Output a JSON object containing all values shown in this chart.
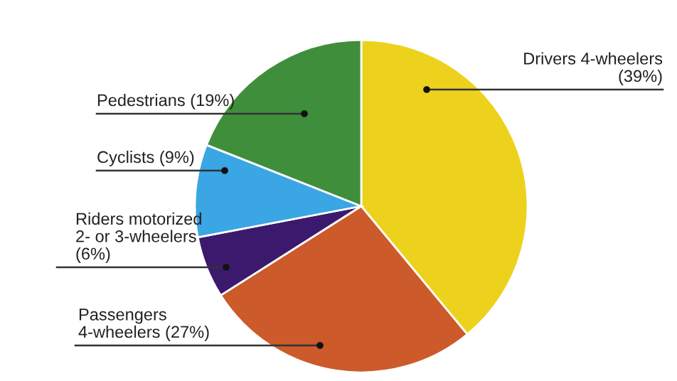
{
  "chart_data": {
    "type": "pie",
    "categories": [
      "Drivers 4-wheelers",
      "Passengers\n4-wheelers",
      "Riders motorized\n2- or 3-wheelers",
      "Cyclists",
      "Pedestrians"
    ],
    "values": [
      39,
      27,
      6,
      9,
      19
    ],
    "value_labels": [
      "(39%)",
      "(27%)",
      "(6%)",
      "(9%)",
      "(19%)"
    ],
    "colors": [
      "#ecd21c",
      "#cc5a2a",
      "#3b1a6e",
      "#3aa6e4",
      "#3f8e3b"
    ],
    "legend": false
  }
}
